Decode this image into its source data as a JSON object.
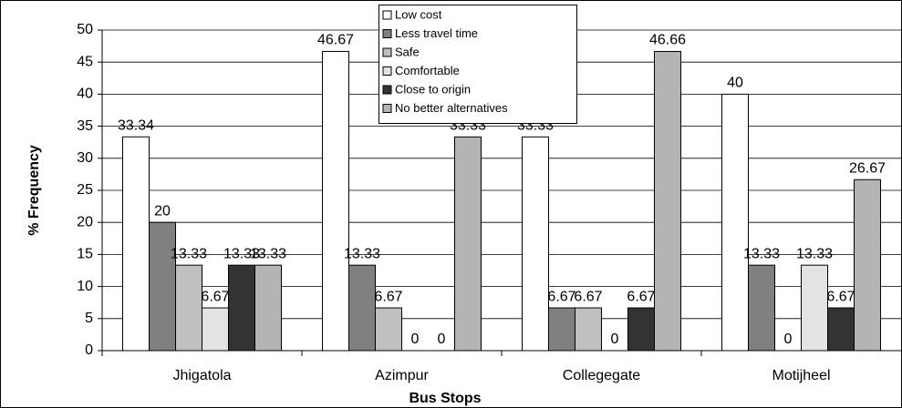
{
  "chart_data": {
    "type": "bar",
    "x_label": "Bus Stops",
    "y_label": "% Frequency",
    "categories": [
      "Jhigatola",
      "Azimpur",
      "Collegegate",
      "Motijheel"
    ],
    "series": [
      {
        "name": "Low cost",
        "color": "#ffffff",
        "values": [
          33.34,
          46.67,
          33.33,
          40
        ]
      },
      {
        "name": "Less travel time",
        "color": "#808080",
        "values": [
          20,
          13.33,
          6.67,
          13.33
        ]
      },
      {
        "name": "Safe",
        "color": "#c0c0c0",
        "values": [
          13.33,
          6.67,
          6.67,
          0
        ]
      },
      {
        "name": "Comfortable",
        "color": "#e3e3e3",
        "values": [
          6.67,
          0,
          0,
          13.33
        ]
      },
      {
        "name": "Close to origin",
        "color": "#333333",
        "values": [
          13.33,
          0,
          6.67,
          6.67
        ]
      },
      {
        "name": "No better alternatives",
        "color": "#b4b4b4",
        "values": [
          13.33,
          33.33,
          46.66,
          26.67
        ]
      }
    ],
    "ylim": [
      0,
      50
    ],
    "yticks": [
      0,
      5,
      10,
      15,
      20,
      25,
      30,
      35,
      40,
      45,
      50
    ],
    "grid": true,
    "legend": "top"
  }
}
